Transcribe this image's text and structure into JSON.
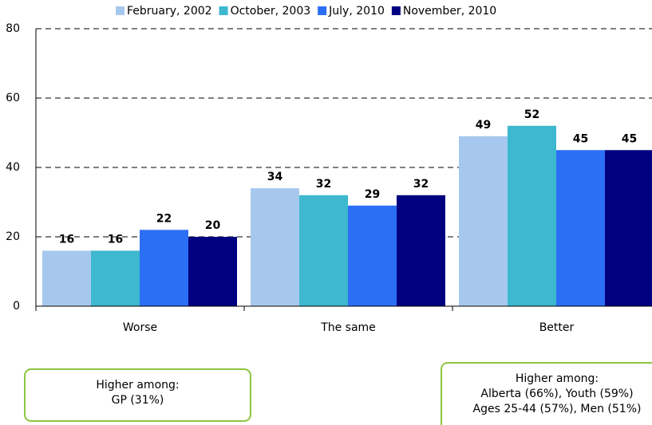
{
  "chart_data": {
    "type": "bar",
    "categories": [
      "Worse",
      "The same",
      "Better"
    ],
    "series": [
      {
        "name": "February, 2002",
        "color": "#a7c8ee",
        "values": [
          16,
          34,
          49
        ]
      },
      {
        "name": "October, 2003",
        "color": "#3db8cf",
        "values": [
          16,
          32,
          52
        ]
      },
      {
        "name": "July, 2010",
        "color": "#2b6ff5",
        "values": [
          22,
          29,
          45
        ]
      },
      {
        "name": "November, 2010",
        "color": "#000080",
        "values": [
          20,
          32,
          45
        ]
      }
    ],
    "ylim": [
      0,
      80
    ],
    "yticks": [
      0,
      20,
      40,
      60,
      80
    ],
    "grid": true,
    "legend": "top",
    "annotations": [
      {
        "title": "Higher among:",
        "lines": [
          "GP (31%)"
        ]
      },
      {
        "title": "Higher among:",
        "lines": [
          "Alberta (66%), Youth (59%)",
          "Ages 25-44 (57%), Men (51%)"
        ]
      }
    ]
  }
}
